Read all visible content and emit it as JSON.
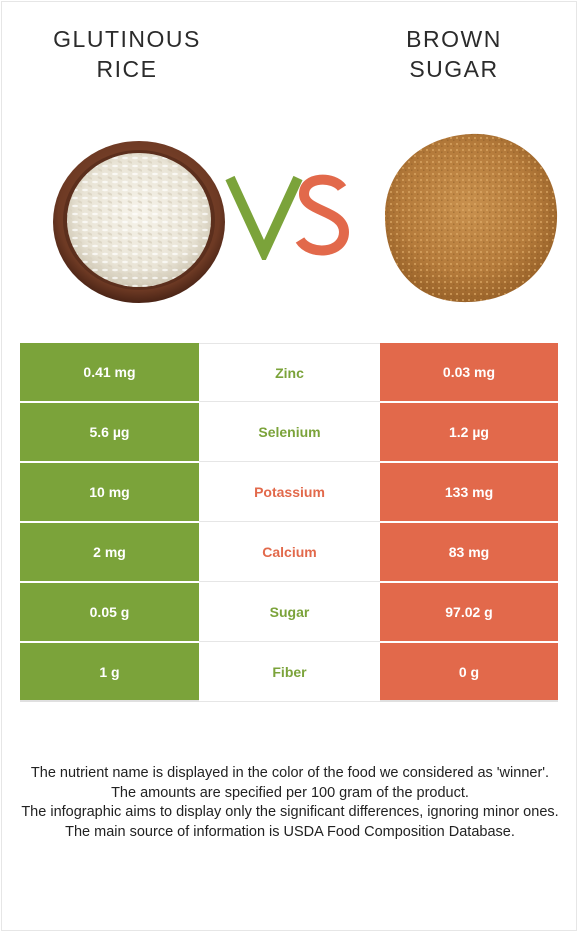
{
  "left_food": {
    "title_line1": "Glutinous",
    "title_line2": "rice",
    "image": "bowl-of-rice"
  },
  "right_food": {
    "title_line1": "Brown",
    "title_line2": "sugar",
    "image": "pile-of-brown-sugar"
  },
  "vs": {
    "v": "V",
    "s": "S"
  },
  "colors": {
    "left_winner": "#7ba33a",
    "right_winner": "#e2694b"
  },
  "rows": [
    {
      "nutrient": "Zinc",
      "left": "0.41 mg",
      "right": "0.03 mg",
      "winner": "left"
    },
    {
      "nutrient": "Selenium",
      "left": "5.6 µg",
      "right": "1.2 µg",
      "winner": "left"
    },
    {
      "nutrient": "Potassium",
      "left": "10 mg",
      "right": "133 mg",
      "winner": "right"
    },
    {
      "nutrient": "Calcium",
      "left": "2 mg",
      "right": "83 mg",
      "winner": "right"
    },
    {
      "nutrient": "Sugar",
      "left": "0.05 g",
      "right": "97.02 g",
      "winner": "left"
    },
    {
      "nutrient": "Fiber",
      "left": "1 g",
      "right": "0 g",
      "winner": "left"
    }
  ],
  "notes": [
    "The nutrient name is displayed in the color of the food we considered as 'winner'.",
    "The amounts are specified per 100 gram of the product.",
    "The infographic aims to display only the significant differences, ignoring minor ones.",
    "The main source of information is USDA Food Composition Database."
  ]
}
